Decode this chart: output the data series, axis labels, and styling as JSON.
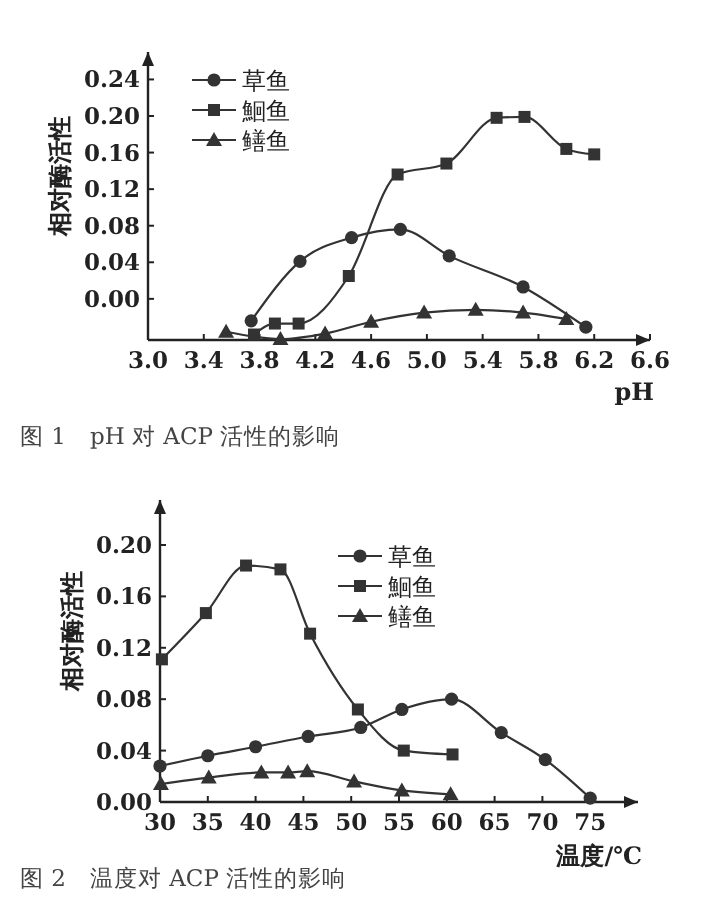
{
  "chart_data": [
    {
      "type": "line",
      "ylabel": "相对酶活性",
      "xlabel": "pH",
      "xlim": [
        3.0,
        6.6
      ],
      "xticks": [
        {
          "value": 3.0,
          "label": "3.0"
        },
        3.4,
        3.8,
        4.2,
        4.6,
        {
          "value": 5.0,
          "label": "5.0"
        },
        5.4,
        5.8,
        6.2,
        6.6
      ],
      "ylim": [
        -0.045,
        0.27
      ],
      "yticks": [
        {
          "value": 0,
          "label": "0.00"
        },
        {
          "value": 0.04,
          "label": "0.04"
        },
        {
          "value": 0.08,
          "label": "0.08"
        },
        {
          "value": 0.12,
          "label": "0.12"
        },
        {
          "value": 0.16,
          "label": "0.16"
        },
        {
          "value": 0.2,
          "label": "0.20"
        },
        {
          "value": 0.24,
          "label": "0.24"
        }
      ],
      "legend": "top left",
      "grid": false,
      "annotations": [
        "图 1　pH 对 ACP 活性的影响"
      ],
      "series": [
        {
          "name": "草鱼",
          "color": "#333333",
          "marker": "circle",
          "x": [
            3.74,
            4.09,
            4.46,
            4.81,
            5.16,
            5.69,
            6.14
          ],
          "values": [
            -0.024,
            0.041,
            0.067,
            0.076,
            0.047,
            0.013,
            -0.031
          ]
        },
        {
          "name": "鮰鱼",
          "color": "#333333",
          "marker": "square",
          "x": [
            3.76,
            3.91,
            4.08,
            4.44,
            4.79,
            5.14,
            5.5,
            5.7,
            6.0,
            6.2
          ],
          "values": [
            -0.039,
            -0.027,
            -0.027,
            0.025,
            0.136,
            0.148,
            0.198,
            0.199,
            0.164,
            0.158
          ]
        },
        {
          "name": "鳝鱼",
          "color": "#333333",
          "marker": "triangle",
          "x": [
            3.56,
            3.95,
            4.27,
            4.6,
            4.98,
            5.35,
            5.69,
            6.0
          ],
          "values": [
            -0.036,
            -0.044,
            -0.038,
            -0.025,
            -0.015,
            -0.012,
            -0.015,
            -0.022
          ]
        }
      ]
    },
    {
      "type": "line",
      "ylabel": "相对酶活性",
      "xlabel": "温度/℃",
      "xlim": [
        30,
        80
      ],
      "xticks": [
        30,
        35,
        40,
        45,
        50,
        55,
        60,
        65,
        70,
        75
      ],
      "ylim": [
        0,
        0.235
      ],
      "yticks": [
        {
          "value": 0,
          "label": "0.00"
        },
        {
          "value": 0.04,
          "label": "0.04"
        },
        {
          "value": 0.08,
          "label": "0.08"
        },
        {
          "value": 0.12,
          "label": "0.12"
        },
        {
          "value": 0.16,
          "label": "0.16"
        },
        {
          "value": 0.2,
          "label": "0.20"
        }
      ],
      "legend": "top right",
      "grid": false,
      "annotations": [
        "图 2　温度对 ACP 活性的影响"
      ],
      "series": [
        {
          "name": "草鱼",
          "color": "#333333",
          "marker": "circle",
          "x": [
            30,
            35,
            40,
            45.5,
            51,
            55.3,
            60.5,
            65.7,
            70.3,
            75
          ],
          "values": [
            0.028,
            0.036,
            0.043,
            0.051,
            0.058,
            0.072,
            0.08,
            0.054,
            0.033,
            0.003
          ]
        },
        {
          "name": "鮰鱼",
          "color": "#333333",
          "marker": "square",
          "x": [
            30.2,
            34.8,
            39,
            42.6,
            45.7,
            50.7,
            55.5,
            60.6
          ],
          "values": [
            0.111,
            0.147,
            0.184,
            0.181,
            0.131,
            0.072,
            0.04,
            0.037
          ]
        },
        {
          "name": "鳝鱼",
          "color": "#333333",
          "marker": "triangle",
          "x": [
            30.1,
            35.1,
            40.6,
            43.4,
            45.4,
            50.3,
            55.3,
            60.4
          ],
          "values": [
            0.014,
            0.019,
            0.023,
            0.023,
            0.024,
            0.016,
            0.009,
            0.006
          ]
        }
      ]
    }
  ]
}
